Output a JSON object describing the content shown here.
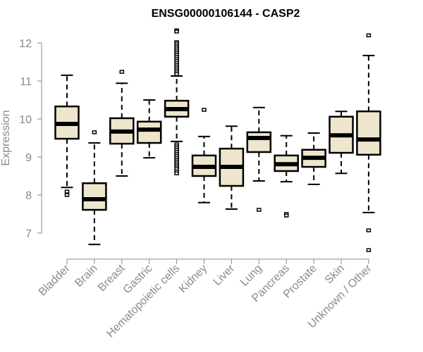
{
  "chart_data": {
    "type": "boxplot",
    "title": "ENSG00000106144 - CASP2",
    "xlabel": "",
    "ylabel": "Expression",
    "ylim": [
      6.45,
      12.35
    ],
    "yticks": [
      7,
      8,
      9,
      10,
      11,
      12
    ],
    "ytick_labels": [
      "7",
      "8",
      "9",
      "10",
      "11",
      "12"
    ],
    "grid": false,
    "box_fill": "#EDE6CD",
    "line_color": "#000000",
    "axis_color": "#8a8a8a",
    "categories": [
      "Bladder",
      "Brain",
      "Breast",
      "Gastric",
      "Hematopoietic cells",
      "Kidney",
      "Liver",
      "Lung",
      "Pancreas",
      "Prostate",
      "Skin",
      "Unknown / Other"
    ],
    "boxes": [
      {
        "name": "Bladder",
        "whisker_low": 8.2,
        "q1": 9.48,
        "median": 9.87,
        "q3": 10.33,
        "whisker_high": 11.15,
        "outliers": [
          8.09,
          8.0
        ]
      },
      {
        "name": "Brain",
        "whisker_low": 6.7,
        "q1": 7.61,
        "median": 7.89,
        "q3": 8.31,
        "whisker_high": 9.37,
        "outliers": [
          9.65
        ]
      },
      {
        "name": "Breast",
        "whisker_low": 8.5,
        "q1": 9.35,
        "median": 9.67,
        "q3": 10.02,
        "whisker_high": 10.94,
        "outliers": [
          11.24
        ]
      },
      {
        "name": "Gastric",
        "whisker_low": 8.98,
        "q1": 9.37,
        "median": 9.72,
        "q3": 9.93,
        "whisker_high": 10.5,
        "outliers": []
      },
      {
        "name": "Hematopoietic cells",
        "whisker_low": 9.41,
        "q1": 10.06,
        "median": 10.26,
        "q3": 10.48,
        "whisker_high": 11.13,
        "outliers": [
          12.33,
          12.3,
          12.02,
          11.98,
          11.93,
          11.88,
          11.83,
          11.78,
          11.73,
          11.68,
          11.63,
          11.58,
          11.53,
          11.48,
          11.43,
          11.38,
          11.33,
          11.28,
          11.23,
          11.18,
          9.33,
          9.28,
          9.23,
          9.18,
          9.13,
          9.08,
          9.03,
          8.98,
          8.93,
          8.88,
          8.83,
          8.78,
          8.73,
          8.68,
          8.62,
          8.57
        ]
      },
      {
        "name": "Kidney",
        "whisker_low": 7.8,
        "q1": 8.5,
        "median": 8.74,
        "q3": 9.04,
        "whisker_high": 9.54,
        "outliers": [
          10.24
        ]
      },
      {
        "name": "Liver",
        "whisker_low": 7.63,
        "q1": 8.24,
        "median": 8.74,
        "q3": 9.22,
        "whisker_high": 9.81,
        "outliers": []
      },
      {
        "name": "Lung",
        "whisker_low": 8.37,
        "q1": 9.13,
        "median": 9.5,
        "q3": 9.65,
        "whisker_high": 10.3,
        "outliers": [
          7.61
        ]
      },
      {
        "name": "Pancreas",
        "whisker_low": 8.35,
        "q1": 8.63,
        "median": 8.81,
        "q3": 9.04,
        "whisker_high": 9.56,
        "outliers": [
          7.5,
          7.46
        ]
      },
      {
        "name": "Prostate",
        "whisker_low": 8.28,
        "q1": 8.74,
        "median": 8.98,
        "q3": 9.19,
        "whisker_high": 9.63,
        "outliers": []
      },
      {
        "name": "Skin",
        "whisker_low": 8.57,
        "q1": 9.11,
        "median": 9.57,
        "q3": 10.06,
        "whisker_high": 10.2,
        "outliers": []
      },
      {
        "name": "Unknown / Other",
        "whisker_low": 7.54,
        "q1": 9.06,
        "median": 9.46,
        "q3": 10.2,
        "whisker_high": 11.67,
        "outliers": [
          12.2,
          7.07,
          6.55
        ]
      }
    ]
  }
}
